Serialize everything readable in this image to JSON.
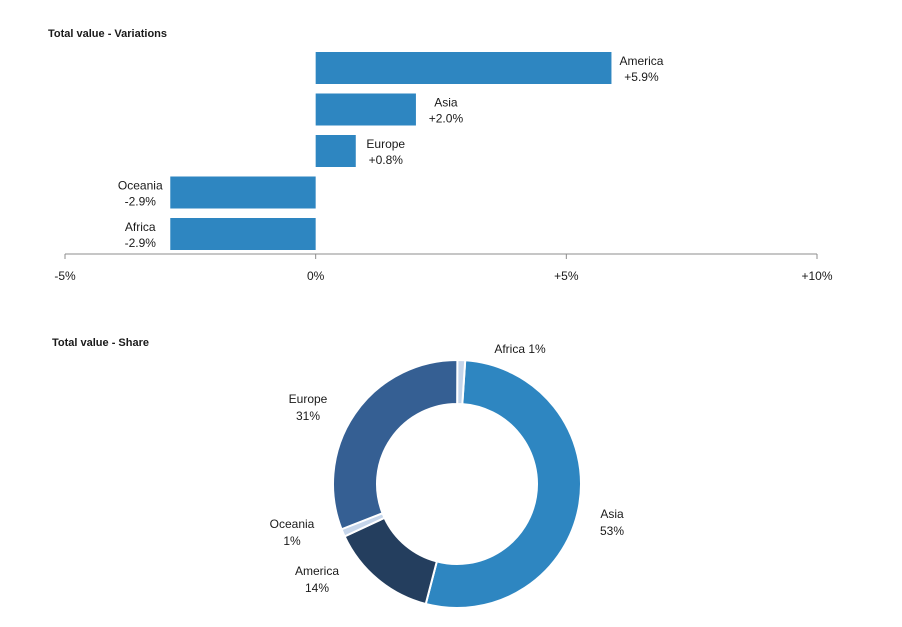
{
  "chart_data": [
    {
      "type": "bar",
      "orientation": "horizontal",
      "title": "Total value - Variations",
      "categories": [
        "America",
        "Asia",
        "Europe",
        "Oceania",
        "Africa"
      ],
      "values": [
        5.9,
        2.0,
        0.8,
        -2.9,
        -2.9
      ],
      "value_labels": [
        "+5.9%",
        "+2.0%",
        "+0.8%",
        "-2.9%",
        "-2.9%"
      ],
      "xlim": [
        -5,
        10
      ],
      "ticks": [
        -5,
        0,
        5,
        10
      ],
      "tick_labels": [
        "-5%",
        "0%",
        "+5%",
        "+10%"
      ],
      "color": "#2e86c1",
      "grid": false
    },
    {
      "type": "pie",
      "donut": true,
      "title": "Total value - Share",
      "slices": [
        {
          "label": "Asia",
          "value": 53,
          "value_label": "53%",
          "color": "#2e86c1"
        },
        {
          "label": "America",
          "value": 14,
          "value_label": "14%",
          "color": "#243e5e"
        },
        {
          "label": "Oceania",
          "value": 1,
          "value_label": "1%",
          "color": "#c5d5ea"
        },
        {
          "label": "Europe",
          "value": 31,
          "value_label": "31%",
          "color": "#355f93"
        },
        {
          "label": "Africa",
          "value": 1,
          "value_label": "1%",
          "color": "#c5d5ea"
        }
      ]
    }
  ]
}
